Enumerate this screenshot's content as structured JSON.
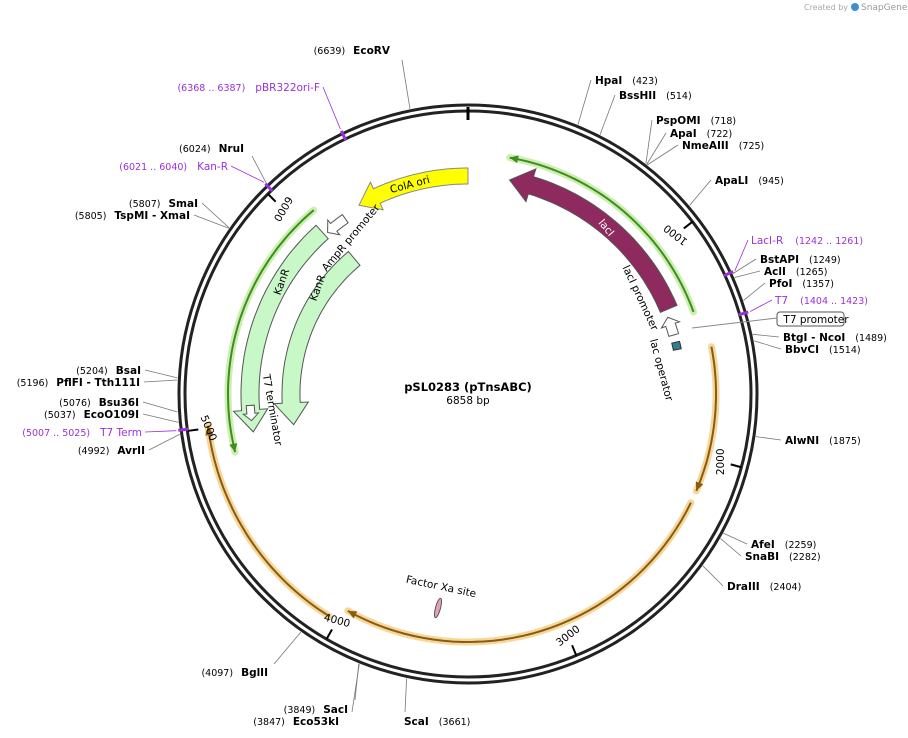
{
  "watermark": {
    "prefix": "Created by",
    "brand": "SnapGene"
  },
  "plasmid": {
    "name": "pSL0283 (pTnsABC)",
    "length": "6858 bp"
  },
  "enzymes": [
    {
      "name": "EcoRV",
      "position": "(6639)"
    },
    {
      "name": "HpaI",
      "position": "(423)"
    },
    {
      "name": "BssHII",
      "position": "(514)"
    },
    {
      "name": "PspOMI",
      "position": "(718)"
    },
    {
      "name": "ApaI",
      "position": "(722)"
    },
    {
      "name": "NmeAIII",
      "position": "(725)"
    },
    {
      "name": "ApaLI",
      "position": "(945)"
    },
    {
      "name": "BstAPI",
      "position": "(1249)"
    },
    {
      "name": "AclI",
      "position": "(1265)"
    },
    {
      "name": "PfoI",
      "position": "(1357)"
    },
    {
      "name": "BtgI - NcoI",
      "position": "(1489)"
    },
    {
      "name": "BbvCI",
      "position": "(1514)"
    },
    {
      "name": "AlwNI",
      "position": "(1875)"
    },
    {
      "name": "AfeI",
      "position": "(2259)"
    },
    {
      "name": "SnaBI",
      "position": "(2282)"
    },
    {
      "name": "DraIII",
      "position": "(2404)"
    },
    {
      "name": "ScaI",
      "position": "(3661)"
    },
    {
      "name": "SacI",
      "position": "(3849)"
    },
    {
      "name": "Eco53kI",
      "position": "(3847)"
    },
    {
      "name": "BglII",
      "position": "(4097)"
    },
    {
      "name": "AvrII",
      "position": "(4992)"
    },
    {
      "name": "EcoO109I",
      "position": "(5037)"
    },
    {
      "name": "Bsu36I",
      "position": "(5076)"
    },
    {
      "name": "PflFI - Tth111I",
      "position": "(5196)"
    },
    {
      "name": "BsaI",
      "position": "(5204)"
    },
    {
      "name": "TspMI - XmaI",
      "position": "(5805)"
    },
    {
      "name": "SmaI",
      "position": "(5807)"
    },
    {
      "name": "NruI",
      "position": "(6024)"
    }
  ],
  "primers": [
    {
      "name": "pBR322ori-F",
      "range": "(6368 .. 6387)"
    },
    {
      "name": "Kan-R",
      "range": "(6021 .. 6040)"
    },
    {
      "name": "LacI-R",
      "range": "(1242 .. 1261)"
    },
    {
      "name": "T7",
      "range": "(1404 .. 1423)"
    },
    {
      "name": "T7 Term",
      "range": "(5007 .. 5025)"
    }
  ],
  "features": [
    {
      "label": "ColA ori"
    },
    {
      "label": "lacI"
    },
    {
      "label": "lacI promoter"
    },
    {
      "label": "lac operator"
    },
    {
      "label": "AmpR promoter"
    },
    {
      "label": "KanR"
    },
    {
      "label": "KanR"
    },
    {
      "label": "T7 terminator"
    },
    {
      "label": "Factor Xa site"
    },
    {
      "label": "T7 promoter"
    }
  ],
  "ruler": [
    "1000",
    "2000",
    "3000",
    "4000",
    "5000",
    "6000"
  ]
}
